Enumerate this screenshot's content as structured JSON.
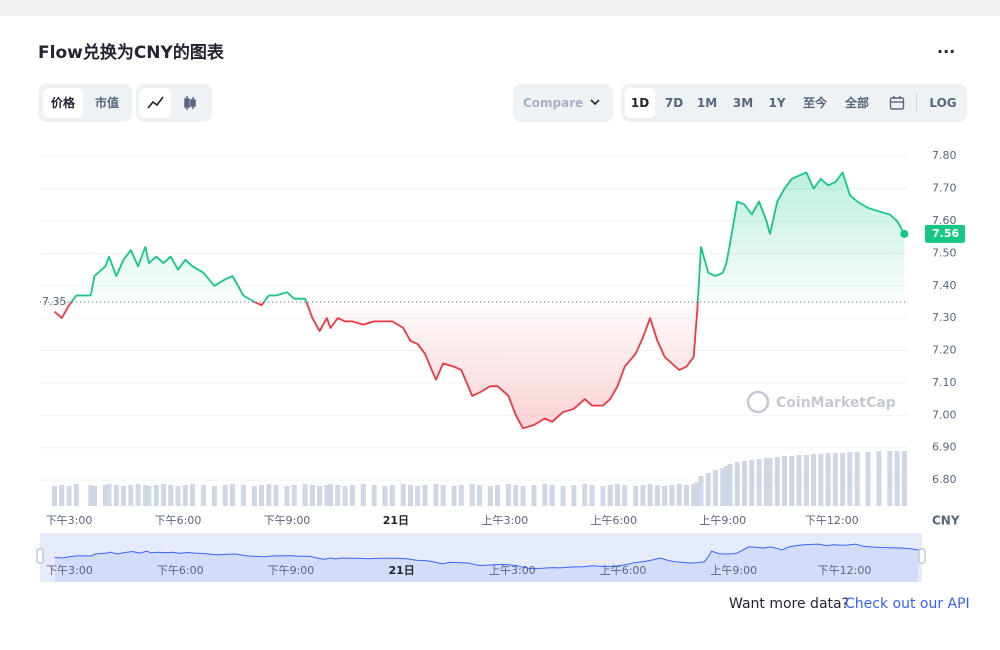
{
  "ui": {
    "title": "Flow兑换为CNY的图表",
    "more": "...",
    "tabs": [
      "价格",
      "市值"
    ],
    "compare": "Compare",
    "ranges": [
      "1D",
      "7D",
      "1M",
      "3M",
      "1Y",
      "至今",
      "全部"
    ],
    "log": "LOG",
    "currency": "CNY",
    "watermark": "CoinMarketCap",
    "footer": "Want more data?",
    "footer_link": "Check out our API"
  },
  "chart_data": {
    "type": "line",
    "x": [
      14.6,
      14.8,
      15.0,
      15.2,
      15.6,
      15.7,
      16.0,
      16.1,
      16.3,
      16.5,
      16.7,
      16.9,
      17.1,
      17.2,
      17.4,
      17.6,
      17.8,
      18.0,
      18.2,
      18.4,
      18.7,
      19.0,
      19.3,
      19.5,
      19.8,
      20.1,
      20.3,
      20.5,
      20.7,
      21.0,
      21.2,
      21.5,
      21.7,
      21.9,
      22.1,
      22.2,
      22.4,
      22.6,
      22.8,
      23.1,
      23.4,
      23.7,
      23.9,
      24.2,
      24.4,
      24.6,
      24.8,
      25.1,
      25.3,
      25.6,
      25.8,
      26.1,
      26.3,
      26.6,
      26.8,
      27.1,
      27.3,
      27.5,
      27.8,
      28.1,
      28.3,
      28.6,
      28.9,
      29.2,
      29.4,
      29.7,
      29.9,
      30.1,
      30.3,
      30.6,
      30.8,
      31.0,
      31.2,
      31.4,
      31.6,
      31.8,
      32.0,
      32.2,
      32.3,
      32.4,
      32.6,
      32.8,
      33.0,
      33.1,
      33.2,
      33.4,
      33.6,
      33.8,
      34.0,
      34.2,
      34.3,
      34.5,
      34.7,
      34.9,
      35.1,
      35.3,
      35.5,
      35.7,
      35.9,
      36.1,
      36.3,
      36.5,
      36.7,
      37.0,
      37.3,
      37.6,
      37.8,
      38.0
    ],
    "series": [
      {
        "name": "价格",
        "color": "#16c784",
        "color_below": "#ea3943",
        "values": [
          7.32,
          7.3,
          7.34,
          7.37,
          7.37,
          7.43,
          7.46,
          7.49,
          7.43,
          7.48,
          7.51,
          7.46,
          7.52,
          7.47,
          7.49,
          7.47,
          7.49,
          7.45,
          7.48,
          7.46,
          7.44,
          7.4,
          7.42,
          7.43,
          7.37,
          7.35,
          7.34,
          7.37,
          7.37,
          7.38,
          7.36,
          7.36,
          7.3,
          7.26,
          7.3,
          7.27,
          7.3,
          7.29,
          7.29,
          7.28,
          7.29,
          7.29,
          7.29,
          7.27,
          7.23,
          7.22,
          7.19,
          7.11,
          7.16,
          7.15,
          7.14,
          7.06,
          7.07,
          7.09,
          7.09,
          7.06,
          7.0,
          6.96,
          6.97,
          6.99,
          6.98,
          7.01,
          7.02,
          7.05,
          7.03,
          7.03,
          7.05,
          7.09,
          7.15,
          7.19,
          7.24,
          7.3,
          7.23,
          7.18,
          7.16,
          7.14,
          7.15,
          7.18,
          7.33,
          7.52,
          7.44,
          7.43,
          7.44,
          7.47,
          7.53,
          7.66,
          7.65,
          7.62,
          7.66,
          7.6,
          7.56,
          7.66,
          7.7,
          7.73,
          7.74,
          7.75,
          7.7,
          7.73,
          7.71,
          7.72,
          7.75,
          7.68,
          7.66,
          7.64,
          7.63,
          7.62,
          7.6,
          7.56
        ]
      },
      {
        "name": "volume",
        "color": "#cfd6e4",
        "values": [
          20,
          21,
          20,
          22,
          21,
          20,
          21,
          22,
          21,
          20,
          21,
          22,
          21,
          20,
          21,
          22,
          21,
          20,
          21,
          22,
          21,
          20,
          21,
          22,
          21,
          20,
          21,
          22,
          21,
          20,
          21,
          22,
          21,
          20,
          21,
          22,
          21,
          20,
          21,
          22,
          21,
          20,
          21,
          22,
          21,
          20,
          21,
          22,
          21,
          20,
          21,
          22,
          21,
          20,
          21,
          22,
          21,
          20,
          21,
          22,
          21,
          20,
          21,
          22,
          21,
          20,
          21,
          22,
          21,
          20,
          21,
          22,
          21,
          20,
          21,
          22,
          21,
          22,
          24,
          30,
          33,
          36,
          38,
          40,
          42,
          44,
          45,
          46,
          47,
          48,
          48,
          49,
          50,
          50,
          51,
          51,
          52,
          52,
          53,
          53,
          53,
          54,
          54,
          54,
          55,
          55,
          55,
          55
        ]
      }
    ],
    "baseline": {
      "value": 7.35,
      "label": "7.35"
    },
    "last_label": "7.56",
    "xlim": [
      14.2,
      38.1
    ],
    "xticks": [
      {
        "value": 15,
        "label": "下午3:00"
      },
      {
        "value": 18,
        "label": "下午6:00"
      },
      {
        "value": 21,
        "label": "下午9:00"
      },
      {
        "value": 24,
        "label": "21日"
      },
      {
        "value": 27,
        "label": "上午3:00"
      },
      {
        "value": 30,
        "label": "上午6:00"
      },
      {
        "value": 33,
        "label": "上午9:00"
      },
      {
        "value": 36,
        "label": "下午12:00"
      }
    ],
    "ylim": [
      6.72,
      7.85
    ],
    "yticks": [
      {
        "value": 6.8,
        "label": "6.80"
      },
      {
        "value": 6.9,
        "label": "6.90"
      },
      {
        "value": 7.0,
        "label": "7.00"
      },
      {
        "value": 7.1,
        "label": "7.10"
      },
      {
        "value": 7.2,
        "label": "7.20"
      },
      {
        "value": 7.3,
        "label": "7.30"
      },
      {
        "value": 7.4,
        "label": "7.40"
      },
      {
        "value": 7.5,
        "label": "7.50"
      },
      {
        "value": 7.6,
        "label": "7.60"
      },
      {
        "value": 7.7,
        "label": "7.70"
      },
      {
        "value": 7.8,
        "label": "7.80"
      }
    ],
    "grid": true
  }
}
